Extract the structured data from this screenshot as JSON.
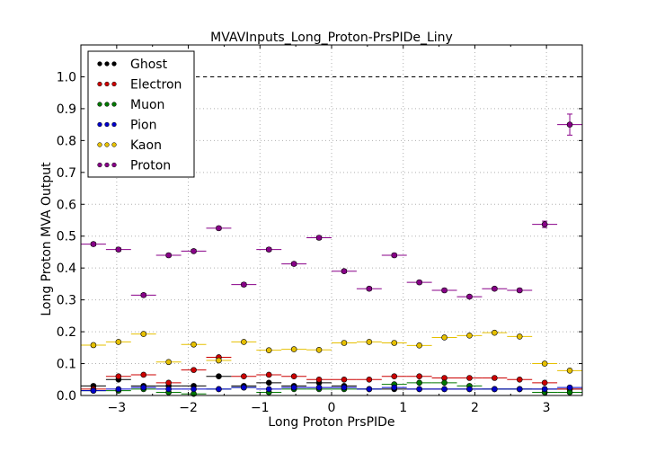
{
  "chart_data": {
    "type": "scatter",
    "title": "MVAVInputs_Long_Proton-PrsPIDe_Liny",
    "xlabel": "Long Proton PrsPIDe",
    "ylabel": "Long Proton MVA Output",
    "xlim": [
      -3.5,
      3.5
    ],
    "ylim": [
      0.0,
      1.1
    ],
    "xticks": [
      -3,
      -2,
      -1,
      0,
      1,
      2,
      3
    ],
    "xtick_labels": [
      "−3",
      "−2",
      "−1",
      "0",
      "1",
      "2",
      "3"
    ],
    "yticks": [
      0.0,
      0.1,
      0.2,
      0.3,
      0.4,
      0.5,
      0.6,
      0.7,
      0.8,
      0.9,
      1.0
    ],
    "ytick_labels": [
      "0.0",
      "0.1",
      "0.2",
      "0.3",
      "0.4",
      "0.5",
      "0.6",
      "0.7",
      "0.8",
      "0.9",
      "1.0"
    ],
    "grid": true,
    "legend_position": "top-left",
    "reference_line_y": 1.0,
    "bin_half_width": 0.175,
    "x": [
      -3.325,
      -2.975,
      -2.625,
      -2.275,
      -1.925,
      -1.575,
      -1.225,
      -0.875,
      -0.525,
      -0.175,
      0.175,
      0.525,
      0.875,
      1.225,
      1.575,
      1.925,
      2.275,
      2.625,
      2.975,
      3.325
    ],
    "series": [
      {
        "name": "Ghost",
        "color": "#000000",
        "values": [
          0.03,
          0.05,
          0.03,
          0.03,
          0.03,
          0.06,
          0.03,
          0.04,
          0.03,
          0.04,
          0.03,
          0.02,
          0.02,
          0.02,
          0.02,
          0.02,
          0.02,
          0.02,
          0.02,
          0.02
        ]
      },
      {
        "name": "Electron",
        "color": "#cc0000",
        "values": [
          0.02,
          0.06,
          0.065,
          0.04,
          0.08,
          0.12,
          0.06,
          0.065,
          0.06,
          0.05,
          0.05,
          0.05,
          0.06,
          0.06,
          0.055,
          0.055,
          0.055,
          0.05,
          0.04,
          0.02
        ]
      },
      {
        "name": "Muon",
        "color": "#007700",
        "values": [
          0.015,
          0.015,
          0.02,
          0.01,
          0.005,
          0.02,
          0.025,
          0.01,
          0.02,
          0.02,
          0.02,
          0.02,
          0.035,
          0.04,
          0.04,
          0.03,
          0.02,
          0.02,
          0.01,
          0.01
        ]
      },
      {
        "name": "Pion",
        "color": "#0000cc",
        "values": [
          0.015,
          0.02,
          0.025,
          0.02,
          0.02,
          0.02,
          0.025,
          0.02,
          0.025,
          0.025,
          0.025,
          0.02,
          0.025,
          0.02,
          0.02,
          0.02,
          0.02,
          0.02,
          0.02,
          0.025
        ]
      },
      {
        "name": "Kaon",
        "color": "#e6c000",
        "values": [
          0.158,
          0.168,
          0.193,
          0.105,
          0.16,
          0.11,
          0.168,
          0.142,
          0.145,
          0.143,
          0.165,
          0.168,
          0.165,
          0.157,
          0.182,
          0.188,
          0.197,
          0.185,
          0.1,
          0.078
        ]
      },
      {
        "name": "Proton",
        "color": "#880088",
        "values": [
          0.475,
          0.458,
          0.315,
          0.44,
          0.453,
          0.525,
          0.348,
          0.458,
          0.413,
          0.495,
          0.39,
          0.335,
          0.44,
          0.355,
          0.33,
          0.31,
          0.335,
          0.33,
          0.537,
          0.85
        ],
        "errors": [
          0.005,
          0.005,
          0.005,
          0.005,
          0.005,
          0.005,
          0.005,
          0.005,
          0.005,
          0.005,
          0.005,
          0.005,
          0.005,
          0.005,
          0.005,
          0.005,
          0.005,
          0.005,
          0.01,
          0.033
        ]
      }
    ]
  }
}
